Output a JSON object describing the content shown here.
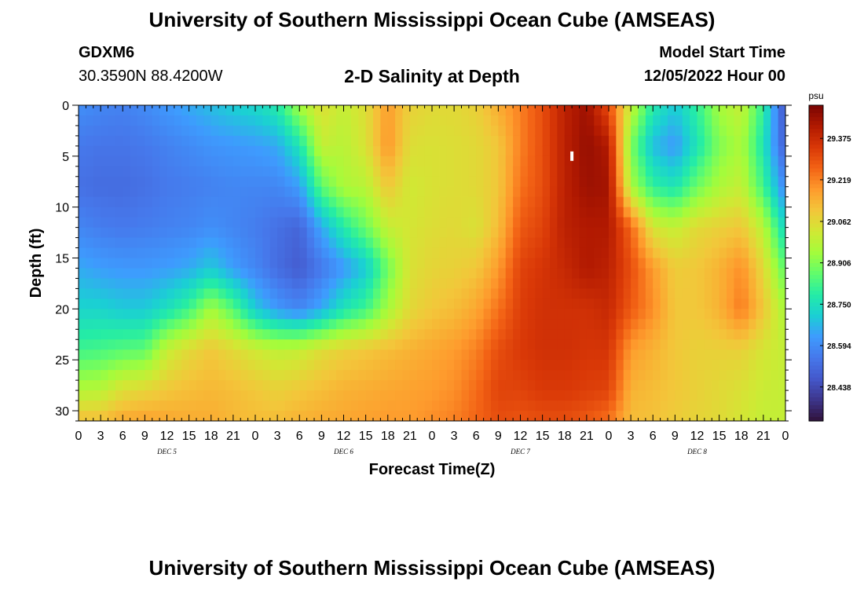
{
  "header": {
    "title": "University of Southern Mississippi Ocean Cube (AMSEAS)",
    "station": "GDXM6",
    "coords": "30.3590N  88.4200W",
    "subtitle": "2-D Salinity at Depth",
    "model_start_label": "Model Start Time",
    "model_start_value": "12/05/2022 Hour 00"
  },
  "footer": {
    "title": "University of Southern Mississippi Ocean Cube (AMSEAS)"
  },
  "chart_data": {
    "type": "heatmap",
    "title": "2-D Salinity at Depth",
    "xlabel": "Forecast Time(Z)",
    "ylabel": "Depth (ft)",
    "x_range_hours": [
      0,
      96
    ],
    "y_range_ft": [
      0,
      31
    ],
    "x_tick_labels": [
      "0",
      "3",
      "6",
      "9",
      "12",
      "15",
      "18",
      "21",
      "0",
      "3",
      "6",
      "9",
      "12",
      "15",
      "18",
      "21",
      "0",
      "3",
      "6",
      "9",
      "12",
      "15",
      "18",
      "21",
      "0",
      "3",
      "6",
      "9",
      "12",
      "15",
      "18",
      "21",
      "0"
    ],
    "x_day_labels": [
      {
        "label": "DEC 5",
        "hour": 12
      },
      {
        "label": "DEC 6",
        "hour": 36
      },
      {
        "label": "DEC 7",
        "hour": 60
      },
      {
        "label": "DEC 8",
        "hour": 84
      }
    ],
    "y_ticks": [
      0,
      5,
      10,
      15,
      20,
      25,
      30
    ],
    "y_tick_labels": [
      "0",
      "5",
      "10",
      "15",
      "20",
      "25",
      "30"
    ],
    "colorbar": {
      "unit": "psu",
      "range": [
        28.31,
        29.5
      ],
      "tick_values": [
        29.375,
        29.219,
        29.062,
        28.906,
        28.75,
        28.594,
        28.438
      ],
      "tick_labels": [
        "29.375",
        "29.219",
        "29.062",
        "28.906",
        "28.750",
        "28.594",
        "28.438"
      ],
      "colors": [
        "#30123b",
        "#3d358b",
        "#4458cb",
        "#4678eb",
        "#3e9bfe",
        "#1bcfd4",
        "#24eca6",
        "#61fc6c",
        "#a4fc3b",
        "#d1e834",
        "#f3c63a",
        "#fe9b2d",
        "#f36315",
        "#d93807",
        "#b11901",
        "#7a0403"
      ]
    },
    "marker": {
      "hour": 67,
      "depth_ft": 5
    },
    "field_profiles": {
      "columns_hours": [
        0,
        3,
        6,
        9,
        12,
        15,
        18,
        21,
        24,
        27,
        30,
        33,
        36,
        39,
        42,
        45,
        48,
        51,
        54,
        57,
        60,
        63,
        66,
        69,
        72,
        75,
        78,
        81,
        84,
        87,
        90,
        93,
        96
      ],
      "rows_depth_ft": [
        0,
        4,
        8,
        12,
        16,
        20,
        24,
        28,
        31
      ],
      "values_psu": [
        [
          28.6,
          28.55,
          28.53,
          28.58,
          28.65,
          28.72,
          28.82,
          28.97,
          29.12
        ],
        [
          28.58,
          28.54,
          28.52,
          28.56,
          28.63,
          28.72,
          28.83,
          28.98,
          29.12
        ],
        [
          28.57,
          28.54,
          28.52,
          28.55,
          28.62,
          28.7,
          28.85,
          29.05,
          29.16
        ],
        [
          28.59,
          28.55,
          28.53,
          28.56,
          28.62,
          28.7,
          28.86,
          29.07,
          29.17
        ],
        [
          28.62,
          28.57,
          28.55,
          28.57,
          28.63,
          28.75,
          29.0,
          29.1,
          29.16
        ],
        [
          28.65,
          28.59,
          28.56,
          28.58,
          28.65,
          28.82,
          29.06,
          29.12,
          29.15
        ],
        [
          28.68,
          28.61,
          28.57,
          28.6,
          28.7,
          28.95,
          29.1,
          29.13,
          29.15
        ],
        [
          28.71,
          28.62,
          28.58,
          28.58,
          28.63,
          28.85,
          29.06,
          29.12,
          29.13
        ],
        [
          28.73,
          28.63,
          28.58,
          28.56,
          28.58,
          28.7,
          29.02,
          29.1,
          29.12
        ],
        [
          28.78,
          28.65,
          28.58,
          28.53,
          28.52,
          28.62,
          28.99,
          29.08,
          29.12
        ],
        [
          28.95,
          28.76,
          28.63,
          28.5,
          28.48,
          28.58,
          29.0,
          29.1,
          29.14
        ],
        [
          29.05,
          29.0,
          28.86,
          28.65,
          28.55,
          28.65,
          29.05,
          29.12,
          29.15
        ],
        [
          29.0,
          28.98,
          28.96,
          28.78,
          28.62,
          28.76,
          29.08,
          29.14,
          29.16
        ],
        [
          29.05,
          29.04,
          28.98,
          28.88,
          28.7,
          28.82,
          29.1,
          29.15,
          29.17
        ],
        [
          29.18,
          29.19,
          29.1,
          29.0,
          28.88,
          28.95,
          29.12,
          29.16,
          29.18
        ],
        [
          29.08,
          29.05,
          29.02,
          29.03,
          29.04,
          29.06,
          29.14,
          29.17,
          29.18
        ],
        [
          29.06,
          29.04,
          29.04,
          29.05,
          29.07,
          29.1,
          29.16,
          29.18,
          29.2
        ],
        [
          29.06,
          29.05,
          29.05,
          29.06,
          29.08,
          29.12,
          29.18,
          29.2,
          29.22
        ],
        [
          29.08,
          29.06,
          29.06,
          29.04,
          29.1,
          29.16,
          29.22,
          29.25,
          29.26
        ],
        [
          29.15,
          29.1,
          29.1,
          29.12,
          29.18,
          29.24,
          29.3,
          29.32,
          29.3
        ],
        [
          29.22,
          29.22,
          29.24,
          29.28,
          29.32,
          29.33,
          29.34,
          29.32,
          29.29
        ],
        [
          29.3,
          29.3,
          29.3,
          29.32,
          29.35,
          29.36,
          29.36,
          29.34,
          29.3
        ],
        [
          29.4,
          29.4,
          29.4,
          29.4,
          29.38,
          29.36,
          29.36,
          29.34,
          29.3
        ],
        [
          29.45,
          29.46,
          29.45,
          29.42,
          29.42,
          29.36,
          29.35,
          29.33,
          29.28
        ],
        [
          29.3,
          29.42,
          29.44,
          29.42,
          29.4,
          29.38,
          29.35,
          29.32,
          29.24
        ],
        [
          29.0,
          28.9,
          28.96,
          29.26,
          29.3,
          29.28,
          29.18,
          29.14,
          29.12
        ],
        [
          28.78,
          28.68,
          28.8,
          29.03,
          29.18,
          29.2,
          29.14,
          29.12,
          29.11
        ],
        [
          28.7,
          28.62,
          28.76,
          29.0,
          29.09,
          29.1,
          29.1,
          29.1,
          29.09
        ],
        [
          28.8,
          28.76,
          28.88,
          29.06,
          29.1,
          29.1,
          29.08,
          29.08,
          29.07
        ],
        [
          28.95,
          28.9,
          28.96,
          29.08,
          29.14,
          29.14,
          29.08,
          29.06,
          29.06
        ],
        [
          29.0,
          28.96,
          29.0,
          29.1,
          29.2,
          29.23,
          29.08,
          29.04,
          29.03
        ],
        [
          28.8,
          28.76,
          28.82,
          28.98,
          29.06,
          29.1,
          29.03,
          29.01,
          29.0
        ],
        [
          28.45,
          28.48,
          28.58,
          28.72,
          28.85,
          28.95,
          29.0,
          29.0,
          29.0
        ]
      ]
    }
  }
}
